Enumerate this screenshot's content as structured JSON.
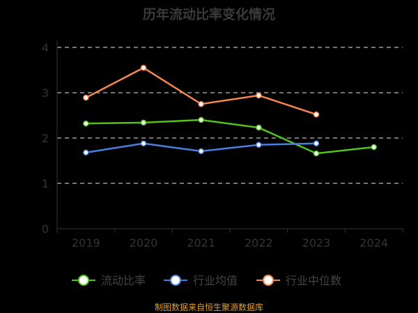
{
  "chart_data": {
    "type": "line",
    "title": "历年流动比率变化情况",
    "categories": [
      "2019",
      "2020",
      "2021",
      "2022",
      "2023",
      "2024"
    ],
    "ylim": [
      0,
      4
    ],
    "yticks": [
      0,
      1,
      2,
      3,
      4
    ],
    "grid": true,
    "legend_placement": "bottom",
    "series": [
      {
        "name": "流动比率",
        "color": "#52c41a",
        "values": [
          2.32,
          2.34,
          2.4,
          2.23,
          1.66,
          1.8
        ]
      },
      {
        "name": "行业均值",
        "color": "#4a80e0",
        "values": [
          1.68,
          1.88,
          1.71,
          1.85,
          1.88,
          null
        ]
      },
      {
        "name": "行业中位数",
        "color": "#f5874f",
        "values": [
          2.89,
          3.55,
          2.75,
          2.94,
          2.52,
          null
        ]
      }
    ]
  },
  "footer": "制图数据来自恒生聚源数据库"
}
